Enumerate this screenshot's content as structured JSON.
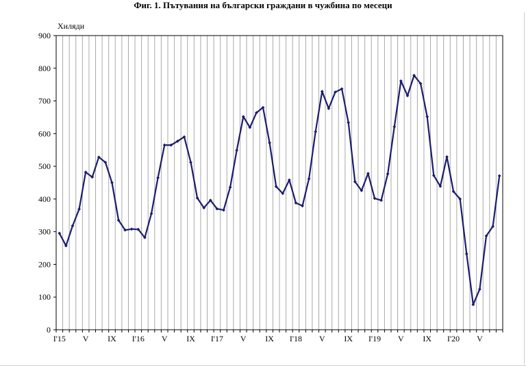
{
  "title": "Фиг. 1. Пътувания на български граждани в чужбина по месеци",
  "chart_data": {
    "type": "line",
    "title": "Фиг. 1. Пътувания на български граждани в чужбина по месеци",
    "ylabel": "Хиляди",
    "xlabel": "",
    "ylim": [
      0,
      900
    ],
    "yticks": [
      0,
      100,
      200,
      300,
      400,
      500,
      600,
      700,
      800,
      900
    ],
    "grid": "vertical",
    "legend": "none",
    "line_color": "#1c1c6e",
    "x_tick_labels": [
      {
        "index": 0,
        "label": "I'15"
      },
      {
        "index": 4,
        "label": "V"
      },
      {
        "index": 8,
        "label": "IX"
      },
      {
        "index": 12,
        "label": "I'16"
      },
      {
        "index": 16,
        "label": "V"
      },
      {
        "index": 20,
        "label": "IX"
      },
      {
        "index": 24,
        "label": "I'17"
      },
      {
        "index": 28,
        "label": "V"
      },
      {
        "index": 32,
        "label": "IX"
      },
      {
        "index": 36,
        "label": "I'18"
      },
      {
        "index": 40,
        "label": "V"
      },
      {
        "index": 44,
        "label": "IX"
      },
      {
        "index": 48,
        "label": "I'19"
      },
      {
        "index": 52,
        "label": "V"
      },
      {
        "index": 56,
        "label": "IX"
      },
      {
        "index": 60,
        "label": "I'20"
      },
      {
        "index": 64,
        "label": "V"
      }
    ],
    "series": [
      {
        "values": [
          295,
          257,
          318,
          369,
          482,
          467,
          528,
          512,
          450,
          335,
          305,
          308,
          307,
          282,
          355,
          465,
          565,
          565,
          577,
          590,
          512,
          403,
          373,
          396,
          370,
          366,
          436,
          549,
          652,
          619,
          664,
          680,
          572,
          438,
          417,
          458,
          388,
          379,
          462,
          606,
          729,
          677,
          727,
          737,
          634,
          453,
          426,
          478,
          402,
          396,
          477,
          621,
          761,
          716,
          778,
          753,
          652,
          472,
          439,
          529,
          423,
          400,
          232,
          77,
          124,
          287,
          316,
          471
        ]
      }
    ]
  }
}
